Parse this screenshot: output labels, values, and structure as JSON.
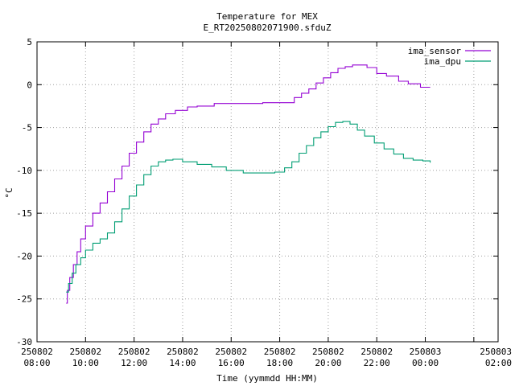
{
  "chart_data": {
    "type": "line",
    "title": "Temperature for MEX",
    "subtitle": "E_RT20250802071900.sfduZ",
    "xlabel": "Time (yymmdd HH:MM)",
    "ylabel": "°C",
    "ylim": [
      -30,
      5
    ],
    "yticks": [
      5,
      0,
      -5,
      -10,
      -15,
      -20,
      -25,
      -30
    ],
    "xlim": [
      7.0,
      26.0
    ],
    "xticks": [
      {
        "x": 7.0,
        "date": "250802",
        "time": "08:00"
      },
      {
        "x": 9.0,
        "date": "250802",
        "time": "10:00"
      },
      {
        "x": 11.0,
        "date": "250802",
        "time": "12:00"
      },
      {
        "x": 13.0,
        "date": "250802",
        "time": "14:00"
      },
      {
        "x": 15.0,
        "date": "250802",
        "time": "16:00"
      },
      {
        "x": 17.0,
        "date": "250802",
        "time": "18:00"
      },
      {
        "x": 19.0,
        "date": "250802",
        "time": "20:00"
      },
      {
        "x": 21.0,
        "date": "250802",
        "time": "22:00"
      },
      {
        "x": 23.0,
        "date": "250803",
        "time": "00:00"
      },
      {
        "x": 25.0,
        "date": "250803",
        "time": "02:00"
      }
    ],
    "grid": true,
    "legend_position": "top-right",
    "series": [
      {
        "name": "ima_sensor",
        "color": "#9400d3",
        "points": [
          [
            8.2,
            -25.5
          ],
          [
            8.25,
            -24.0
          ],
          [
            8.35,
            -22.5
          ],
          [
            8.5,
            -21.0
          ],
          [
            8.65,
            -19.5
          ],
          [
            8.8,
            -18.0
          ],
          [
            9.0,
            -16.5
          ],
          [
            9.3,
            -15.0
          ],
          [
            9.6,
            -13.8
          ],
          [
            9.9,
            -12.5
          ],
          [
            10.2,
            -11.0
          ],
          [
            10.5,
            -9.5
          ],
          [
            10.8,
            -8.0
          ],
          [
            11.1,
            -6.7
          ],
          [
            11.4,
            -5.5
          ],
          [
            11.7,
            -4.6
          ],
          [
            12.0,
            -4.0
          ],
          [
            12.3,
            -3.4
          ],
          [
            12.7,
            -3.0
          ],
          [
            13.2,
            -2.6
          ],
          [
            13.6,
            -2.5
          ],
          [
            14.3,
            -2.2
          ],
          [
            14.8,
            -2.2
          ],
          [
            15.5,
            -2.2
          ],
          [
            16.3,
            -2.1
          ],
          [
            17.2,
            -2.1
          ],
          [
            17.6,
            -1.5
          ],
          [
            17.9,
            -1.0
          ],
          [
            18.2,
            -0.5
          ],
          [
            18.5,
            0.2
          ],
          [
            18.8,
            0.8
          ],
          [
            19.1,
            1.4
          ],
          [
            19.4,
            1.9
          ],
          [
            19.7,
            2.1
          ],
          [
            20.0,
            2.3
          ],
          [
            20.3,
            2.3
          ],
          [
            20.6,
            2.0
          ],
          [
            21.0,
            1.3
          ],
          [
            21.4,
            1.0
          ],
          [
            21.9,
            0.4
          ],
          [
            22.3,
            0.1
          ],
          [
            22.8,
            -0.3
          ],
          [
            23.2,
            -0.3
          ]
        ]
      },
      {
        "name": "ima_dpu",
        "color": "#009e73",
        "points": [
          [
            8.2,
            -24.2
          ],
          [
            8.3,
            -23.2
          ],
          [
            8.45,
            -22.0
          ],
          [
            8.6,
            -21.0
          ],
          [
            8.8,
            -20.2
          ],
          [
            9.0,
            -19.3
          ],
          [
            9.3,
            -18.5
          ],
          [
            9.6,
            -18.0
          ],
          [
            9.9,
            -17.3
          ],
          [
            10.2,
            -16.0
          ],
          [
            10.5,
            -14.5
          ],
          [
            10.8,
            -13.0
          ],
          [
            11.1,
            -11.7
          ],
          [
            11.4,
            -10.5
          ],
          [
            11.7,
            -9.5
          ],
          [
            12.0,
            -9.0
          ],
          [
            12.3,
            -8.8
          ],
          [
            12.6,
            -8.7
          ],
          [
            13.0,
            -9.0
          ],
          [
            13.6,
            -9.3
          ],
          [
            14.2,
            -9.6
          ],
          [
            14.8,
            -10.0
          ],
          [
            15.5,
            -10.3
          ],
          [
            16.2,
            -10.3
          ],
          [
            16.8,
            -10.2
          ],
          [
            17.2,
            -9.7
          ],
          [
            17.5,
            -9.0
          ],
          [
            17.8,
            -8.0
          ],
          [
            18.1,
            -7.1
          ],
          [
            18.4,
            -6.2
          ],
          [
            18.7,
            -5.5
          ],
          [
            19.0,
            -4.9
          ],
          [
            19.3,
            -4.4
          ],
          [
            19.6,
            -4.3
          ],
          [
            19.9,
            -4.6
          ],
          [
            20.2,
            -5.3
          ],
          [
            20.5,
            -6.0
          ],
          [
            20.9,
            -6.8
          ],
          [
            21.3,
            -7.5
          ],
          [
            21.7,
            -8.1
          ],
          [
            22.1,
            -8.6
          ],
          [
            22.5,
            -8.8
          ],
          [
            22.9,
            -8.9
          ],
          [
            23.2,
            -9.1
          ]
        ]
      }
    ]
  }
}
